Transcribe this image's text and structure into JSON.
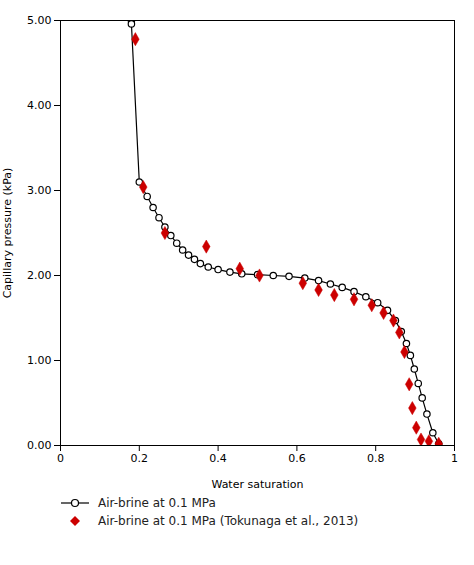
{
  "chart_data": {
    "type": "line",
    "xlabel": "Water saturation",
    "ylabel": "Capillary pressure (kPa)",
    "series": [
      {
        "name": "Air-brine at 0.1 MPa",
        "type": "line",
        "color": "#000000",
        "marker": "circle",
        "x": [
          0.18,
          0.18,
          0.2,
          0.22,
          0.235,
          0.25,
          0.265,
          0.28,
          0.295,
          0.31,
          0.325,
          0.34,
          0.355,
          0.375,
          0.4,
          0.43,
          0.46,
          0.5,
          0.54,
          0.58,
          0.62,
          0.655,
          0.685,
          0.715,
          0.745,
          0.775,
          0.805,
          0.83,
          0.85,
          0.865,
          0.878,
          0.888,
          0.898,
          0.908,
          0.918,
          0.93,
          0.945,
          0.96
        ],
        "values": [
          5.0,
          4.96,
          3.1,
          2.93,
          2.8,
          2.68,
          2.57,
          2.47,
          2.38,
          2.3,
          2.24,
          2.19,
          2.14,
          2.1,
          2.07,
          2.04,
          2.02,
          2.01,
          2.0,
          1.99,
          1.97,
          1.94,
          1.9,
          1.86,
          1.81,
          1.75,
          1.68,
          1.59,
          1.47,
          1.34,
          1.2,
          1.06,
          0.9,
          0.73,
          0.56,
          0.37,
          0.15,
          0.02
        ]
      },
      {
        "name": "Air-brine at 0.1 MPa (Tokunaga et al., 2013)",
        "type": "scatter",
        "color": "#cc0000",
        "marker": "diamond",
        "x": [
          0.19,
          0.21,
          0.265,
          0.37,
          0.455,
          0.505,
          0.615,
          0.655,
          0.695,
          0.745,
          0.79,
          0.82,
          0.845,
          0.86,
          0.873,
          0.885,
          0.893,
          0.903,
          0.915,
          0.935,
          0.96
        ],
        "values": [
          4.78,
          3.04,
          2.5,
          2.34,
          2.08,
          2.0,
          1.91,
          1.83,
          1.77,
          1.72,
          1.65,
          1.56,
          1.47,
          1.33,
          1.1,
          0.72,
          0.44,
          0.21,
          0.07,
          0.05,
          0.02
        ]
      }
    ],
    "xlim": [
      0,
      1
    ],
    "ylim": [
      0,
      5.0
    ],
    "xticks": [
      0,
      0.2,
      0.4,
      0.6,
      0.8,
      1
    ],
    "yticks": [
      {
        "value": 0,
        "label": "0.00"
      },
      {
        "value": 1,
        "label": "1.00"
      },
      {
        "value": 2,
        "label": "2.00"
      },
      {
        "value": 3,
        "label": "3.00"
      },
      {
        "value": 4,
        "label": "4.00"
      },
      {
        "value": 5,
        "label": "5.00"
      }
    ],
    "grid": false,
    "legend": "bottom"
  }
}
